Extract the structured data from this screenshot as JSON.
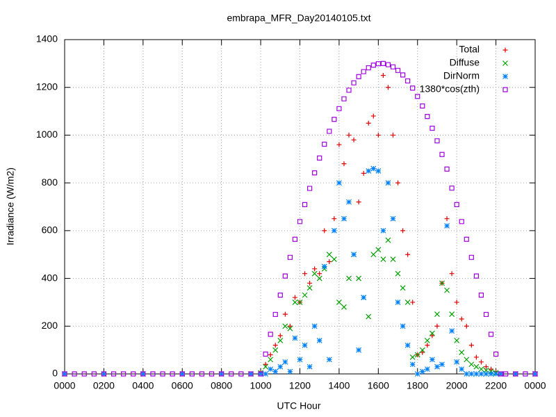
{
  "chart_data": {
    "type": "scatter",
    "title": "embrapa_MFR_Day20140105.txt",
    "x_label": "UTC Hour",
    "y_label": "Irradiance (W/m2)",
    "xlim": [
      0,
      2400
    ],
    "ylim": [
      0,
      1400
    ],
    "xticks": [
      {
        "value": 0,
        "label": "0000"
      },
      {
        "value": 200,
        "label": "0200"
      },
      {
        "value": 400,
        "label": "0400"
      },
      {
        "value": 600,
        "label": "0600"
      },
      {
        "value": 800,
        "label": "0800"
      },
      1000,
      1200,
      1400,
      1600,
      1800,
      2000,
      2200,
      {
        "value": 2400,
        "label": "0000"
      }
    ],
    "yticks": [
      0,
      200,
      400,
      600,
      800,
      1000,
      1200,
      1400
    ],
    "grid": true,
    "legend": "top-right",
    "series": [
      {
        "name": "Total",
        "color": "#e00000",
        "marker": "plus",
        "x": [
          0,
          200,
          400,
          600,
          800,
          950,
          1000,
          1025,
          1050,
          1075,
          1100,
          1125,
          1150,
          1175,
          1200,
          1225,
          1250,
          1275,
          1300,
          1325,
          1350,
          1375,
          1400,
          1425,
          1450,
          1475,
          1500,
          1525,
          1550,
          1575,
          1600,
          1625,
          1650,
          1675,
          1700,
          1725,
          1750,
          1775,
          1800,
          1825,
          1850,
          1875,
          1900,
          1925,
          1950,
          1975,
          2000,
          2025,
          2050,
          2075,
          2100,
          2125,
          2150,
          2175,
          2200,
          2225,
          2300,
          2400
        ],
        "values": [
          0,
          0,
          0,
          0,
          0,
          0,
          5,
          40,
          80,
          120,
          160,
          250,
          200,
          320,
          300,
          420,
          380,
          440,
          420,
          600,
          470,
          650,
          960,
          880,
          1000,
          980,
          720,
          840,
          1050,
          1080,
          1000,
          1250,
          1200,
          1000,
          800,
          600,
          500,
          300,
          80,
          90,
          120,
          160,
          200,
          380,
          650,
          420,
          300,
          230,
          200,
          120,
          70,
          50,
          30,
          20,
          10,
          0,
          0,
          0
        ]
      },
      {
        "name": "Diffuse",
        "color": "#00a000",
        "marker": "cross",
        "x": [
          0,
          200,
          400,
          600,
          800,
          950,
          1000,
          1025,
          1050,
          1075,
          1100,
          1125,
          1150,
          1175,
          1200,
          1225,
          1250,
          1275,
          1300,
          1325,
          1350,
          1375,
          1400,
          1425,
          1450,
          1475,
          1500,
          1525,
          1550,
          1575,
          1600,
          1625,
          1650,
          1675,
          1700,
          1725,
          1750,
          1775,
          1800,
          1825,
          1850,
          1875,
          1900,
          1925,
          1950,
          1975,
          2000,
          2025,
          2050,
          2075,
          2100,
          2125,
          2150,
          2175,
          2200,
          2225,
          2300,
          2400
        ],
        "values": [
          0,
          0,
          0,
          0,
          0,
          0,
          5,
          30,
          60,
          100,
          140,
          200,
          190,
          300,
          300,
          330,
          360,
          420,
          400,
          440,
          500,
          480,
          300,
          280,
          400,
          500,
          400,
          320,
          240,
          500,
          520,
          480,
          560,
          480,
          420,
          360,
          300,
          70,
          80,
          100,
          140,
          170,
          250,
          380,
          350,
          250,
          140,
          90,
          60,
          40,
          30,
          20,
          15,
          10,
          5,
          0,
          0,
          0
        ]
      },
      {
        "name": "DirNorm",
        "color": "#0080ff",
        "marker": "star",
        "x": [
          0,
          200,
          400,
          600,
          800,
          950,
          1000,
          1025,
          1050,
          1075,
          1100,
          1125,
          1150,
          1175,
          1200,
          1225,
          1250,
          1275,
          1300,
          1325,
          1350,
          1375,
          1400,
          1425,
          1450,
          1475,
          1500,
          1525,
          1550,
          1575,
          1600,
          1625,
          1650,
          1675,
          1700,
          1725,
          1750,
          1775,
          1800,
          1825,
          1850,
          1875,
          1900,
          1925,
          1950,
          1975,
          2000,
          2025,
          2050,
          2075,
          2100,
          2125,
          2150,
          2175,
          2200,
          2225,
          2300,
          2400
        ],
        "values": [
          0,
          0,
          0,
          0,
          0,
          0,
          0,
          0,
          20,
          10,
          30,
          50,
          10,
          150,
          60,
          120,
          30,
          200,
          140,
          450,
          60,
          600,
          800,
          650,
          720,
          500,
          100,
          320,
          850,
          860,
          850,
          600,
          800,
          650,
          300,
          200,
          120,
          40,
          0,
          10,
          20,
          60,
          30,
          40,
          620,
          180,
          50,
          20,
          0,
          0,
          0,
          0,
          0,
          0,
          0,
          0,
          0,
          0
        ]
      },
      {
        "name": "1380*cos(zth)",
        "color": "#a000e0",
        "marker": "square",
        "x": [
          0,
          50,
          100,
          150,
          200,
          250,
          300,
          350,
          400,
          450,
          500,
          550,
          600,
          650,
          700,
          750,
          800,
          850,
          900,
          950,
          1000,
          1025,
          1050,
          1075,
          1100,
          1125,
          1150,
          1175,
          1200,
          1225,
          1250,
          1275,
          1300,
          1325,
          1350,
          1375,
          1400,
          1425,
          1450,
          1475,
          1500,
          1525,
          1550,
          1575,
          1600,
          1625,
          1650,
          1675,
          1700,
          1725,
          1750,
          1775,
          1800,
          1825,
          1850,
          1875,
          1900,
          1925,
          1950,
          1975,
          2000,
          2025,
          2050,
          2075,
          2100,
          2125,
          2150,
          2175,
          2200,
          2225,
          2250,
          2300,
          2350,
          2400
        ],
        "values": [
          0,
          0,
          0,
          0,
          0,
          0,
          0,
          0,
          0,
          0,
          0,
          0,
          0,
          0,
          0,
          0,
          0,
          0,
          0,
          0,
          0,
          83,
          166,
          249,
          330,
          410,
          488,
          564,
          638,
          709,
          777,
          842,
          904,
          962,
          1016,
          1066,
          1111,
          1152,
          1188,
          1219,
          1245,
          1266,
          1282,
          1293,
          1299,
          1300,
          1295,
          1286,
          1271,
          1252,
          1227,
          1197,
          1162,
          1122,
          1078,
          1029,
          976,
          919,
          858,
          778,
          709,
          638,
          564,
          488,
          410,
          330,
          249,
          166,
          83,
          0,
          0,
          0,
          0,
          0
        ]
      }
    ]
  }
}
